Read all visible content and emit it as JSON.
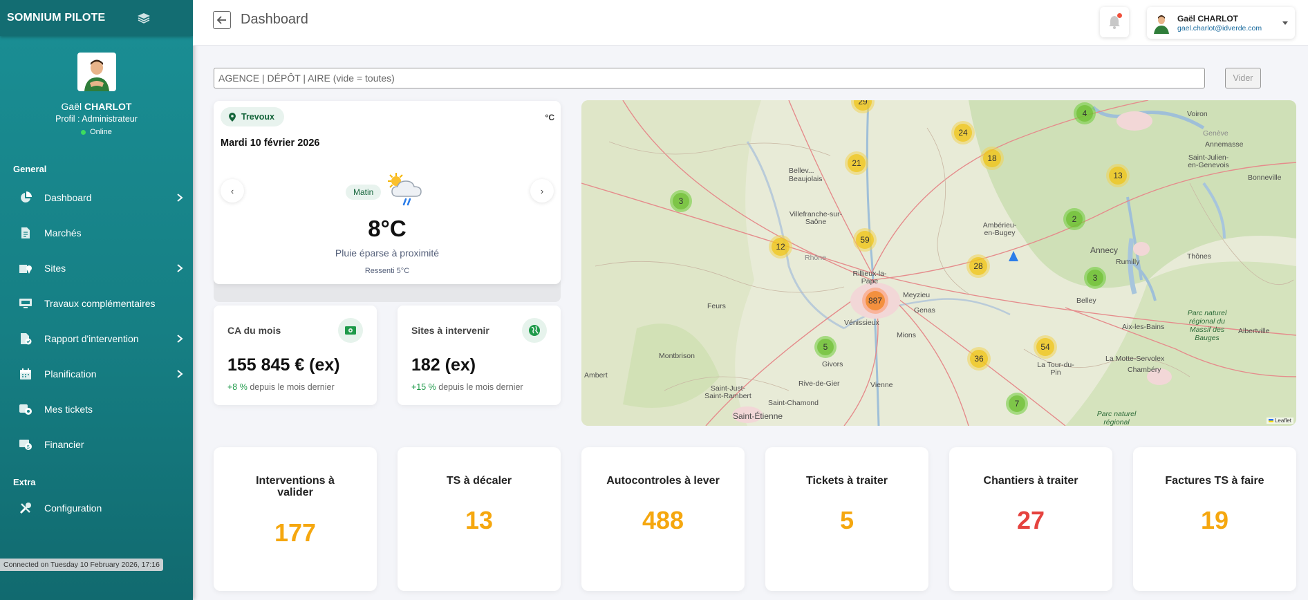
{
  "sidebar": {
    "brand": "SOMNIUM PILOTE",
    "user": {
      "first": "Gaël",
      "last": "CHARLOT",
      "role": "Profil : Administrateur",
      "status": "Online"
    },
    "sections": {
      "general": "General",
      "extra": "Extra"
    },
    "items": [
      {
        "label": "Dashboard",
        "icon": "pie-chart-icon",
        "chevron": true
      },
      {
        "label": "Marchés",
        "icon": "document-icon",
        "chevron": false
      },
      {
        "label": "Sites",
        "icon": "site-location-icon",
        "chevron": true
      },
      {
        "label": "Travaux complémentaires",
        "icon": "monitor-icon",
        "chevron": false
      },
      {
        "label": "Rapport d'intervention",
        "icon": "report-icon",
        "chevron": true
      },
      {
        "label": "Planification",
        "icon": "calendar-icon",
        "chevron": true
      },
      {
        "label": "Mes tickets",
        "icon": "tickets-icon",
        "chevron": false
      },
      {
        "label": "Financier",
        "icon": "finance-icon",
        "chevron": false
      }
    ],
    "extra_items": [
      {
        "label": "Configuration",
        "icon": "tools-icon"
      }
    ],
    "connected": "Connected on Tuesday 10 February 2026, 17:16"
  },
  "header": {
    "title": "Dashboard",
    "user_name": "Gaël CHARLOT",
    "user_email": "gael.charlot@idverde.com"
  },
  "filter": {
    "placeholder": "AGENCE | DÉPÔT | AIRE (vide = toutes)",
    "value": "",
    "clear_label": "Vider"
  },
  "weather": {
    "location": "Trevoux",
    "unit": "°C",
    "date": "Mardi 10 février 2026",
    "period": "Matin",
    "temperature": "8°C",
    "description": "Pluie éparse à proximité",
    "feels_like": "Ressenti 5°C",
    "prev": "‹",
    "next": "›"
  },
  "stats": [
    {
      "title": "CA du mois",
      "value": "155 845 € (ex)",
      "change": "+8 %",
      "change_suffix": "depuis le mois dernier"
    },
    {
      "title": "Sites à intervenir",
      "value": "182 (ex)",
      "change": "+15 %",
      "change_suffix": "depuis le mois dernier"
    }
  ],
  "map": {
    "attribution": "Leaflet",
    "labels": [
      "Voiron",
      "Genève",
      "Annemasse",
      "Saint-Julien-en-Genevois",
      "Bonneville",
      "Bellev...",
      "Beaujolais",
      "Villefranche-sur-Saône",
      "Ambérieu-en-Bugey",
      "Annecy",
      "Rumilly",
      "Thônes",
      "Rhône",
      "Rillieux-la-Pape",
      "Meyzieu",
      "Genas",
      "Vénissieux",
      "Mions",
      "Feurs",
      "Belley",
      "Aix-les-Bains",
      "Albertville",
      "Parc naturel régional du Massif des Bauges",
      "Montbrison",
      "La Motte-Servolex",
      "Chambéry",
      "Givors",
      "Vienne",
      "La Tour-du-Pin",
      "Ambert",
      "Saint-Just-Saint-Rambert",
      "Saint-Chamond",
      "Rive-de-Gier",
      "Saint-Étienne",
      "Parc naturel régional"
    ],
    "clusters": [
      {
        "count": "29",
        "tone": "yellow"
      },
      {
        "count": "4",
        "tone": "green"
      },
      {
        "count": "24",
        "tone": "yellow"
      },
      {
        "count": "21",
        "tone": "yellow"
      },
      {
        "count": "18",
        "tone": "yellow"
      },
      {
        "count": "13",
        "tone": "yellow"
      },
      {
        "count": "3",
        "tone": "green"
      },
      {
        "count": "2",
        "tone": "green"
      },
      {
        "count": "59",
        "tone": "yellow"
      },
      {
        "count": "12",
        "tone": "yellow"
      },
      {
        "count": "28",
        "tone": "yellow"
      },
      {
        "count": "3",
        "tone": "green"
      },
      {
        "count": "887",
        "tone": "orange"
      },
      {
        "count": "5",
        "tone": "green"
      },
      {
        "count": "54",
        "tone": "yellow"
      },
      {
        "count": "36",
        "tone": "yellow"
      },
      {
        "count": "7",
        "tone": "green"
      }
    ]
  },
  "kpis": [
    {
      "title": "Interventions à valider",
      "value": "177",
      "color": "yellow"
    },
    {
      "title": "TS à décaler",
      "value": "13",
      "color": "yellow"
    },
    {
      "title": "Autocontroles à lever",
      "value": "488",
      "color": "yellow"
    },
    {
      "title": "Tickets à traiter",
      "value": "5",
      "color": "yellow"
    },
    {
      "title": "Chantiers à traiter",
      "value": "27",
      "color": "red"
    },
    {
      "title": "Factures TS à faire",
      "value": "19",
      "color": "yellow"
    }
  ],
  "colors": {
    "sidebar": "#178489",
    "accent_yellow": "#f5a70f",
    "accent_red": "#e5433f",
    "positive": "#1f9a4a"
  }
}
